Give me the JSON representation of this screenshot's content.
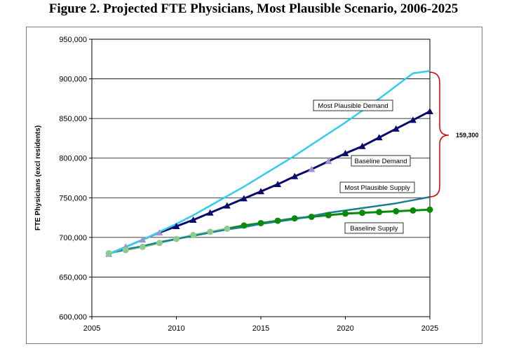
{
  "title": "Figure 2. Projected FTE Physicians, Most Plausible Scenario, 2006-2025",
  "colors": {
    "most_plausible_demand": "#33ccee",
    "baseline_demand": "#0a0a6e",
    "baseline_demand_light": "#9c94cc",
    "most_plausible_supply": "#1a7f8f",
    "baseline_supply": "#0a8a0a",
    "baseline_supply_light": "#8ccc8c",
    "bracket": "#cc0000"
  },
  "chart_data": {
    "type": "line",
    "ylabel": "FTE Physicians (excl residents)",
    "xlabel": "",
    "xlim": [
      2005,
      2025
    ],
    "ylim": [
      600000,
      950000
    ],
    "x_ticks": [
      "2005",
      "2010",
      "2015",
      "2020",
      "2025"
    ],
    "y_ticks": [
      "600,000",
      "650,000",
      "700,000",
      "750,000",
      "800,000",
      "850,000",
      "900,000",
      "950,000"
    ],
    "grid": "horizontal",
    "series": [
      {
        "name": "Most Plausible Demand",
        "marker": "none",
        "x": [
          2006,
          2007,
          2008,
          2009,
          2010,
          2011,
          2012,
          2013,
          2014,
          2015,
          2016,
          2017,
          2018,
          2019,
          2020,
          2021,
          2022,
          2023,
          2024,
          2025
        ],
        "values": [
          679000,
          688000,
          697000,
          707000,
          717000,
          728000,
          740000,
          752000,
          764000,
          777000,
          790000,
          803000,
          817000,
          831000,
          845000,
          860000,
          875000,
          891000,
          907000,
          910000
        ]
      },
      {
        "name": "Baseline Demand",
        "marker": "triangle",
        "x": [
          2006,
          2007,
          2008,
          2009,
          2010,
          2011,
          2012,
          2013,
          2014,
          2015,
          2016,
          2017,
          2018,
          2019,
          2020,
          2021,
          2022,
          2023,
          2024,
          2025
        ],
        "values": [
          679000,
          688000,
          697000,
          706000,
          714000,
          722000,
          731000,
          740000,
          749000,
          758000,
          767000,
          777000,
          786000,
          796000,
          806000,
          815000,
          826000,
          837000,
          848000,
          859000
        ]
      },
      {
        "name": "Most Plausible Supply",
        "marker": "none",
        "x": [
          2006,
          2007,
          2008,
          2009,
          2010,
          2011,
          2012,
          2013,
          2014,
          2015,
          2016,
          2017,
          2018,
          2019,
          2020,
          2021,
          2022,
          2023,
          2024,
          2025
        ],
        "values": [
          680000,
          685000,
          689000,
          694000,
          698000,
          702000,
          706000,
          710000,
          713000,
          717000,
          720000,
          723000,
          727000,
          731000,
          734000,
          737000,
          740000,
          743000,
          747000,
          751000
        ]
      },
      {
        "name": "Baseline Supply",
        "marker": "circle",
        "x": [
          2006,
          2007,
          2008,
          2009,
          2010,
          2011,
          2012,
          2013,
          2014,
          2015,
          2016,
          2017,
          2018,
          2019,
          2020,
          2021,
          2022,
          2023,
          2024,
          2025
        ],
        "values": [
          680000,
          684000,
          688000,
          693000,
          698000,
          703000,
          707000,
          711000,
          715000,
          718000,
          721000,
          724000,
          726000,
          728000,
          730000,
          731000,
          732000,
          733000,
          734000,
          735000
        ]
      }
    ],
    "annotations": [
      {
        "text": "Most Plausible Demand"
      },
      {
        "text": "Baseline Demand"
      },
      {
        "text": "Most Plausible Supply"
      },
      {
        "text": "Baseline Supply"
      },
      {
        "text": "159,300"
      }
    ]
  }
}
